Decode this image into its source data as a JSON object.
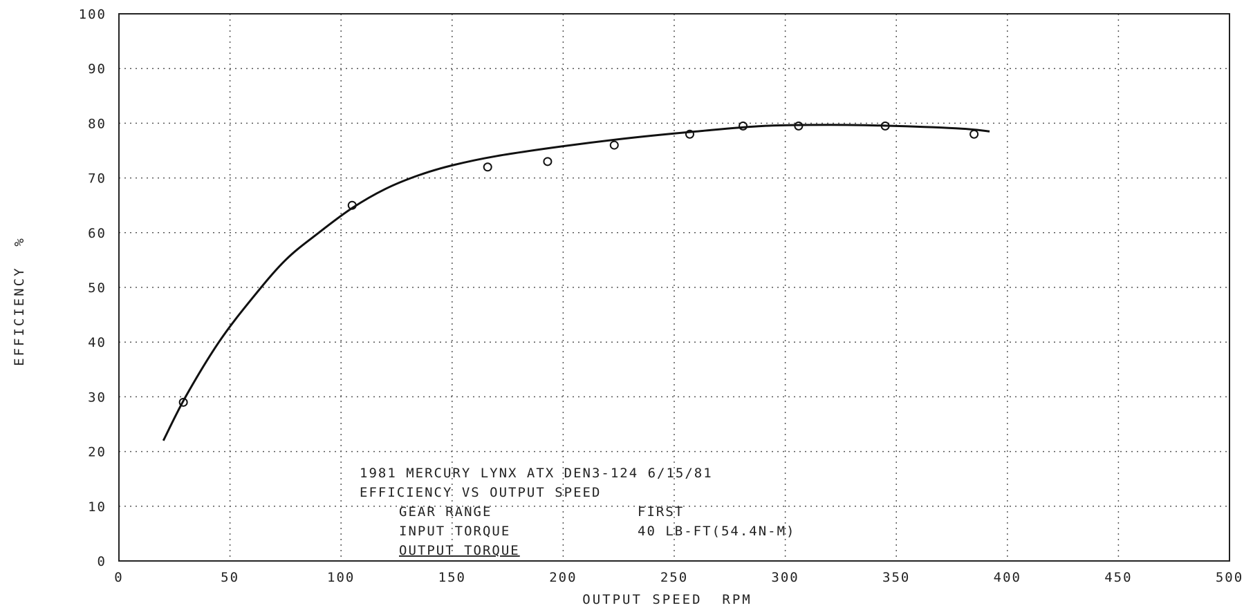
{
  "chart_data": {
    "type": "scatter",
    "xlabel": "OUTPUT SPEED  RPM",
    "ylabel": "EFFICIENCY  %",
    "xlim": [
      0,
      500
    ],
    "ylim": [
      0,
      100
    ],
    "grid": true,
    "x_ticks": [
      0,
      50,
      100,
      150,
      200,
      250,
      300,
      350,
      400,
      450,
      500
    ],
    "y_ticks": [
      0,
      10,
      20,
      30,
      40,
      50,
      60,
      70,
      80,
      90,
      100
    ],
    "series": [
      {
        "kind": "points",
        "marker": "circle",
        "x": [
          29,
          105,
          166,
          193,
          223,
          257,
          281,
          306,
          345,
          385
        ],
        "y": [
          29,
          65,
          72,
          73,
          76,
          78,
          79.5,
          79.5,
          79.5,
          78
        ]
      },
      {
        "kind": "fitted-curve",
        "x": [
          20,
          30,
          45,
          60,
          75,
          90,
          105,
          120,
          135,
          150,
          170,
          200,
          230,
          260,
          290,
          320,
          350,
          380,
          392
        ],
        "y": [
          22,
          30,
          40,
          48,
          55,
          60,
          64.5,
          68,
          70.5,
          72.3,
          74,
          75.8,
          77.3,
          78.5,
          79.5,
          79.7,
          79.5,
          79,
          78.5
        ]
      }
    ],
    "annotation_lines": [
      "1981 MERCURY LYNX ATX DEN3-124 6/15/81",
      "EFFICIENCY VS OUTPUT SPEED",
      "GEAR RANGE",
      "FIRST",
      "INPUT TORQUE",
      "40 LB-FT(54.4N-M)",
      "OUTPUT TORQUE"
    ]
  },
  "colors": {
    "ink": "#111111",
    "grid": "#555555",
    "background": "#ffffff"
  }
}
